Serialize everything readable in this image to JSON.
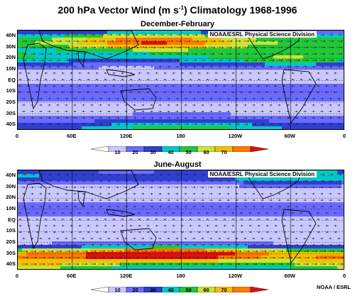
{
  "title": "200 hPa Vector Wind (m s",
  "title_unit_exp": "-1",
  "title_tail": ") Climatology 1968-1996",
  "credit": "NOAA/ESRL Physical Science Division",
  "footer": "NOAA / ESRL",
  "lat_labels": [
    "40N",
    "30N",
    "20N",
    "10N",
    "EQ",
    "10S",
    "20S",
    "30S",
    "40S"
  ],
  "lon_labels": [
    "0",
    "60E",
    "120E",
    "180",
    "120W",
    "60W",
    "0"
  ],
  "colorbar": {
    "labels": [
      "10",
      "20",
      "30",
      "40",
      "50",
      "60",
      "70"
    ],
    "colors": [
      "#ffffff",
      "#c8c8ff",
      "#6a6aff",
      "#2f3fcf",
      "#00c8c8",
      "#22c83a",
      "#c8e43a",
      "#f2c000",
      "#ff7a00",
      "#e01010"
    ]
  },
  "panels": [
    {
      "subtitle": "December-February",
      "jets": [
        {
          "lat": 35,
          "lon_center": 150,
          "width": 9,
          "strength": 60
        },
        {
          "lat": -45,
          "lon_center": 180,
          "width": 12,
          "strength": 35
        },
        {
          "lat": 20,
          "lon_center": 300,
          "width": 8,
          "strength": 35
        }
      ]
    },
    {
      "subtitle": "June-August",
      "jets": [
        {
          "lat": -30,
          "lon_center": 165,
          "width": 7,
          "strength": 65
        },
        {
          "lat": 40,
          "lon_center": 300,
          "width": 8,
          "strength": 30
        },
        {
          "lat": -40,
          "lon_center": 20,
          "width": 10,
          "strength": 40
        }
      ]
    }
  ]
}
